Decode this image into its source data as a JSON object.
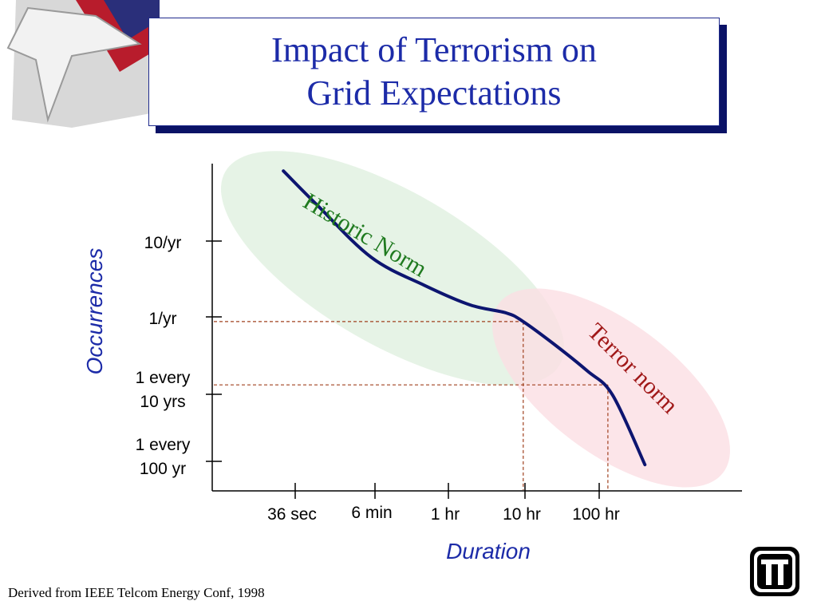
{
  "title": {
    "line1": "Impact of Terrorism on",
    "line2": "Grid Expectations"
  },
  "source_note": "Derived from IEEE Telcom Energy Conf, 1998",
  "colors": {
    "title_text": "#1c2ba8",
    "curve": "#0d1570",
    "historic_region": "#e3f2e3",
    "historic_label": "#1f7a1f",
    "terror_region": "#fbdfe3",
    "terror_label": "#a01818",
    "guide_lines": "#a0401e"
  },
  "chart_data": {
    "type": "line",
    "xlabel": "Duration",
    "ylabel": "Occurrences",
    "x_scale": "log",
    "y_scale": "log",
    "x_ticks": [
      "36 sec",
      "6 min",
      "1 hr",
      "10 hr",
      "100 hr"
    ],
    "y_ticks": [
      {
        "lines": [
          "10/yr"
        ]
      },
      {
        "lines": [
          "1/yr"
        ]
      },
      {
        "lines": [
          "1 every",
          "10 yrs"
        ]
      },
      {
        "lines": [
          "1 every",
          "100 yr"
        ]
      }
    ],
    "regions": [
      {
        "name": "historic",
        "label": "Historic Norm"
      },
      {
        "name": "terror",
        "label": "Terror norm"
      }
    ],
    "series": [
      {
        "x": [
          0.007,
          0.02,
          0.1,
          0.5,
          2,
          6,
          10,
          25,
          70,
          150,
          400
        ],
        "y": [
          90,
          30,
          6,
          2.5,
          1.35,
          1.05,
          0.8,
          0.4,
          0.17,
          0.08,
          0.009
        ]
      }
    ],
    "guides": [
      {
        "x": 10,
        "y": 0.8
      },
      {
        "x": 130,
        "y": 0.11
      }
    ]
  }
}
